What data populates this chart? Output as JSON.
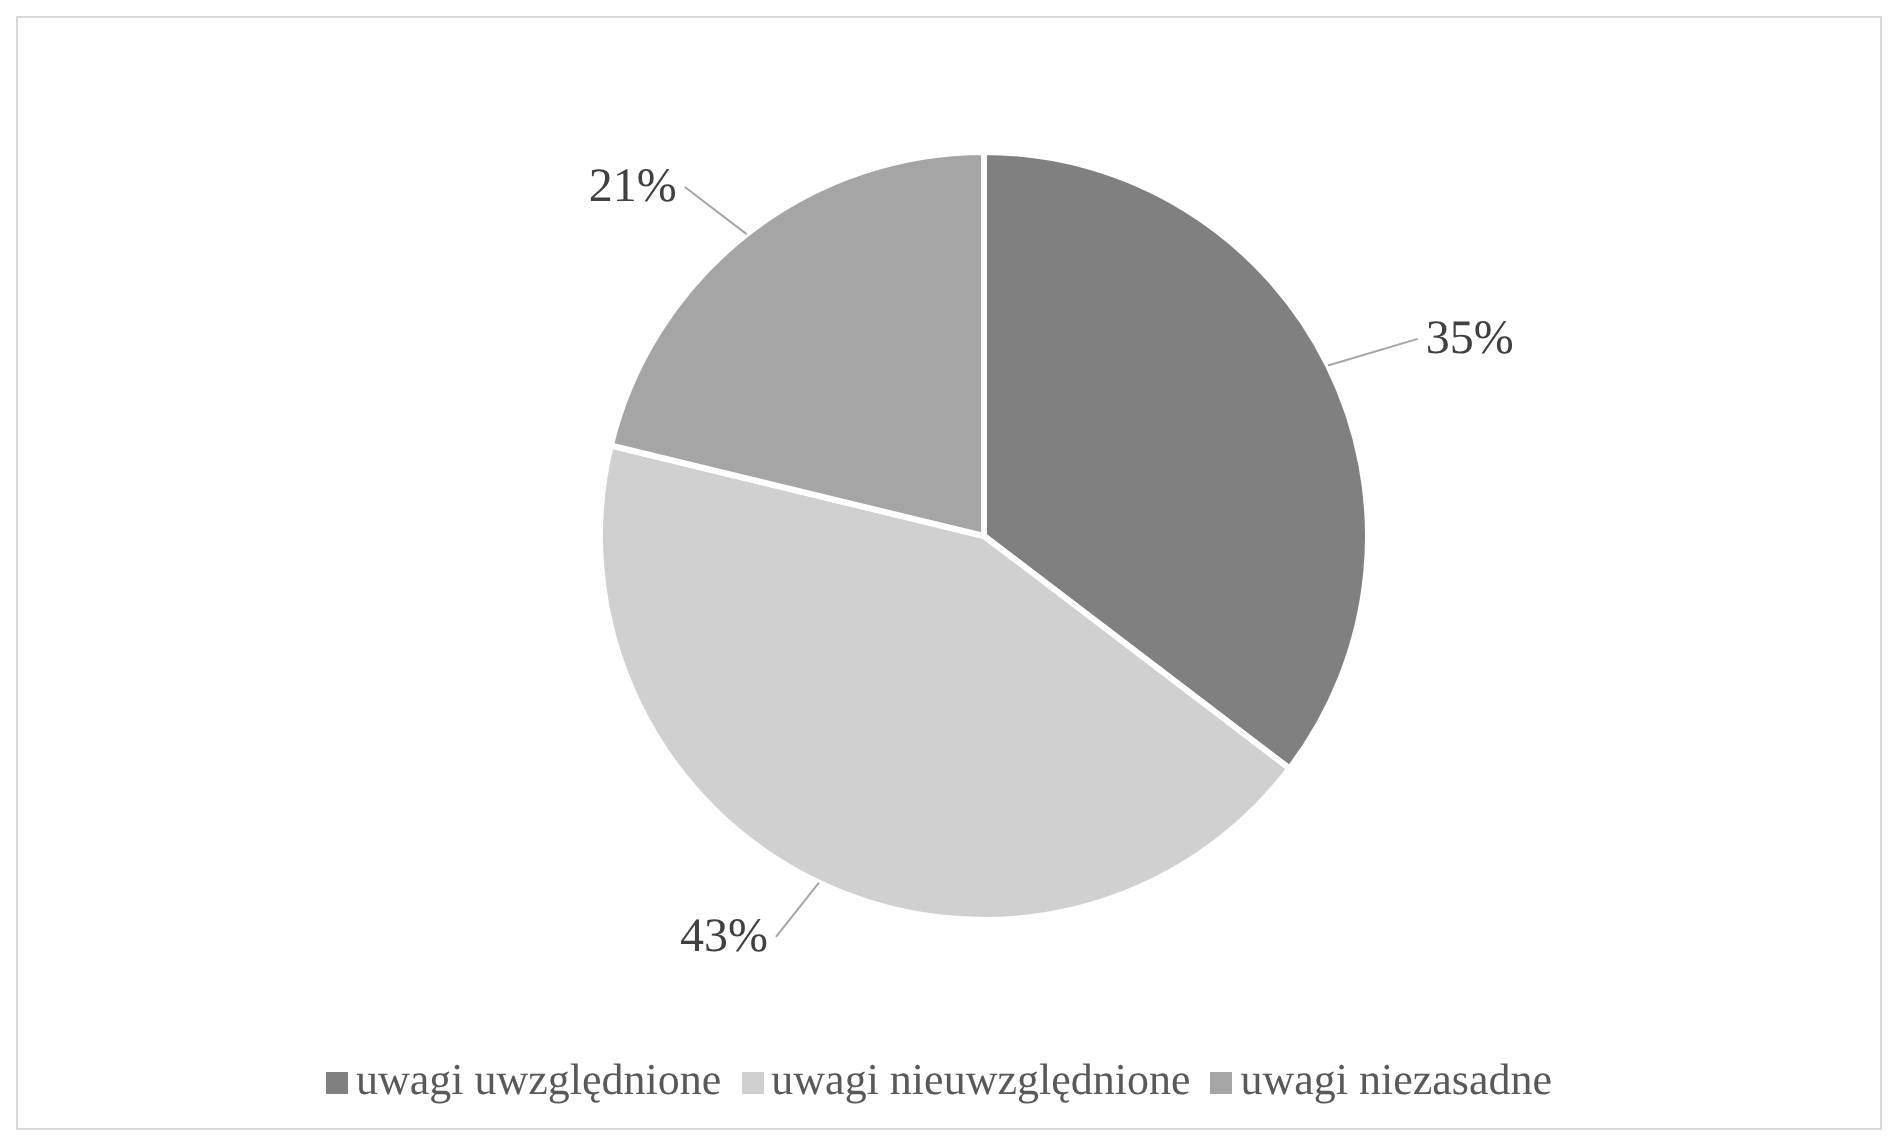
{
  "chart_data": {
    "type": "pie",
    "categories": [
      "uwagi uwzględnione",
      "uwagi nieuwzględnione",
      "uwagi niezasadne"
    ],
    "values": [
      35,
      43,
      21
    ],
    "colors": [
      "#808080",
      "#d0d0d0",
      "#a5a5a5"
    ],
    "value_labels": [
      "35%",
      "43%",
      "21%"
    ],
    "legend": "bottom"
  }
}
